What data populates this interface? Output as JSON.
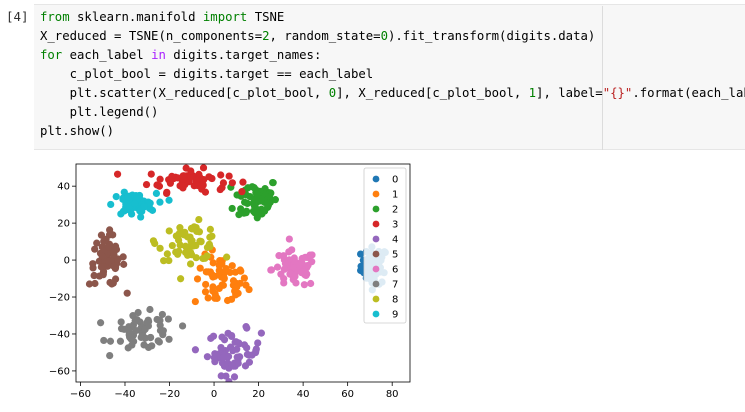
{
  "cell": {
    "prompt": "[4]",
    "code_lines": [
      [
        {
          "t": "from",
          "c": "kw"
        },
        {
          "t": " sklearn.manifold ",
          "c": ""
        },
        {
          "t": "import",
          "c": "kw"
        },
        {
          "t": " TSNE",
          "c": ""
        }
      ],
      [
        {
          "t": "X_reduced = TSNE(n_components=",
          "c": ""
        },
        {
          "t": "2",
          "c": "num"
        },
        {
          "t": ", random_state=",
          "c": ""
        },
        {
          "t": "0",
          "c": "num"
        },
        {
          "t": ").fit_transform(digits.data)",
          "c": ""
        }
      ],
      [
        {
          "t": "for",
          "c": "kw"
        },
        {
          "t": " each_label ",
          "c": ""
        },
        {
          "t": "in",
          "c": "kw2"
        },
        {
          "t": " digits.target_names:",
          "c": ""
        }
      ],
      [
        {
          "t": "    c_plot_bool = digits.target == each_label",
          "c": ""
        }
      ],
      [
        {
          "t": "    plt.scatter(X_reduced[c_plot_bool, ",
          "c": ""
        },
        {
          "t": "0",
          "c": "num"
        },
        {
          "t": "], X_reduced[c_plot_bool, ",
          "c": ""
        },
        {
          "t": "1",
          "c": "num"
        },
        {
          "t": "], label=",
          "c": ""
        },
        {
          "t": "\"{}\"",
          "c": "str"
        },
        {
          "t": ".format(each_label))",
          "c": ""
        }
      ],
      [
        {
          "t": "    plt.legend()",
          "c": ""
        }
      ],
      [
        {
          "t": "plt.show()",
          "c": ""
        }
      ]
    ]
  },
  "chart_data": {
    "type": "scatter",
    "xlim": [
      -62,
      88
    ],
    "ylim": [
      -66,
      52
    ],
    "xticks": [
      -60,
      -40,
      -20,
      0,
      20,
      40,
      60,
      80
    ],
    "xtick_labels": [
      "−60",
      "−40",
      "−20",
      "0",
      "20",
      "40",
      "60",
      "80"
    ],
    "yticks": [
      40,
      20,
      0,
      -20,
      -40,
      -60
    ],
    "ytick_labels": [
      "40",
      "20",
      "0",
      "−20",
      "−40",
      "−60"
    ],
    "legend_position": "top-right",
    "series": [
      {
        "name": "0",
        "color": "#1f77b4",
        "cx": 72,
        "cy": -3,
        "sx": 3,
        "sy": 5,
        "n": 60
      },
      {
        "name": "1",
        "color": "#ff7f0e",
        "cx": 3,
        "cy": -12,
        "sx": 6,
        "sy": 7,
        "n": 55
      },
      {
        "name": "2",
        "color": "#2ca02c",
        "cx": 19,
        "cy": 33,
        "sx": 5,
        "sy": 6,
        "n": 60
      },
      {
        "name": "3",
        "color": "#d62728",
        "cx": -12,
        "cy": 43,
        "sx": 9,
        "sy": 3,
        "n": 60
      },
      {
        "name": "4",
        "color": "#9467bd",
        "cx": 9,
        "cy": -50,
        "sx": 6,
        "sy": 6,
        "n": 60
      },
      {
        "name": "5",
        "color": "#8c564b",
        "cx": -48,
        "cy": 0,
        "sx": 4,
        "sy": 7,
        "n": 60
      },
      {
        "name": "6",
        "color": "#e377c2",
        "cx": 36,
        "cy": -5,
        "sx": 5,
        "sy": 5,
        "n": 60
      },
      {
        "name": "7",
        "color": "#7f7f7f",
        "cx": -31,
        "cy": -39,
        "sx": 7,
        "sy": 5,
        "n": 60
      },
      {
        "name": "8",
        "color": "#bcbd22",
        "cx": -11,
        "cy": 10,
        "sx": 7,
        "sy": 5,
        "n": 60
      },
      {
        "name": "9",
        "color": "#17becf",
        "cx": -36,
        "cy": 30,
        "sx": 5,
        "sy": 3,
        "n": 60
      }
    ]
  }
}
